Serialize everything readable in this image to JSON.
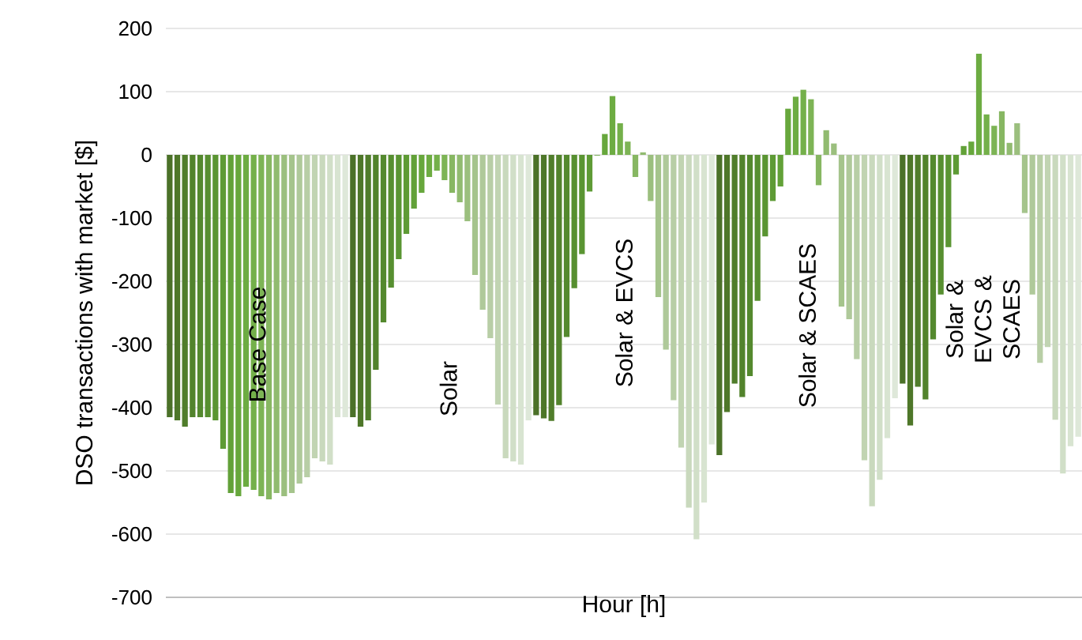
{
  "chart_data": {
    "type": "bar",
    "xlabel": "Hour [h]",
    "ylabel": "DSO transactions with market [$]",
    "categories": [
      null,
      null,
      null,
      null,
      null,
      null,
      null,
      null,
      null,
      null,
      null,
      null,
      null,
      null,
      null,
      null,
      null,
      null,
      null,
      null,
      null,
      null,
      null,
      null,
      null,
      null,
      null,
      null,
      null,
      null,
      null,
      null,
      null,
      null,
      null,
      null,
      null,
      null,
      null,
      null,
      null,
      null,
      null,
      null,
      null,
      null,
      null,
      null,
      null,
      null,
      null,
      null,
      null,
      null,
      null,
      null,
      null,
      null,
      null,
      null,
      null,
      null,
      null,
      null,
      null,
      null,
      null,
      null,
      null,
      null,
      null,
      null,
      null,
      null,
      null,
      null,
      null,
      null,
      null,
      null,
      null,
      null,
      null,
      null,
      null,
      null,
      null,
      null,
      null,
      null,
      null,
      null,
      null,
      null,
      null,
      null,
      null,
      null,
      null,
      null,
      null,
      null,
      null,
      null,
      null,
      null,
      null,
      null,
      null,
      null,
      null,
      null,
      null,
      null,
      null,
      null,
      null,
      null,
      null,
      null
    ],
    "values": [
      -415,
      -420,
      -430,
      -415,
      -415,
      -415,
      -420,
      -465,
      -535,
      -540,
      -525,
      -530,
      -540,
      -545,
      -535,
      -540,
      -535,
      -520,
      -510,
      -480,
      -485,
      -490,
      -415,
      -415,
      -415,
      -430,
      -420,
      -340,
      -265,
      -210,
      -165,
      -125,
      -85,
      -60,
      -35,
      -25,
      -40,
      -60,
      -75,
      -105,
      -190,
      -245,
      -290,
      -395,
      -480,
      -485,
      -490,
      -420,
      -412,
      -417,
      -421,
      -396,
      -288,
      -211,
      -157,
      -58,
      -1,
      33,
      93,
      50,
      21,
      -35,
      4,
      -73,
      -225,
      -308,
      -388,
      -463,
      -558,
      -608,
      -550,
      -458,
      -475,
      -407,
      -362,
      -383,
      -350,
      -231,
      -129,
      -73,
      -50,
      73,
      92,
      103,
      88,
      -48,
      39,
      18,
      -240,
      -260,
      -323,
      -483,
      -556,
      -514,
      -448,
      -385,
      -362,
      -428,
      -367,
      -387,
      -292,
      -221,
      -146,
      -31,
      14,
      21,
      160,
      64,
      46,
      69,
      19,
      50,
      -92,
      -221,
      -329,
      -304,
      -419,
      -504,
      -461,
      -446
    ],
    "colors": [
      "#4b7128",
      "#4e7729",
      "#507d2b",
      "#52832c",
      "#54892e",
      "#578f30",
      "#5a9532",
      "#5e9b35",
      "#62a138",
      "#67a73c",
      "#6dac42",
      "#74b04a",
      "#7db455",
      "#87b762",
      "#91bb70",
      "#9bbf7e",
      "#a5c48c",
      "#afc99a",
      "#b8cea6",
      "#c1d4b2",
      "#c9d9bd",
      "#d1dfc8",
      "#d8e4d1",
      "#dee8d9",
      "#4b7128",
      "#4e7729",
      "#507d2b",
      "#52832c",
      "#54892e",
      "#578f30",
      "#5a9532",
      "#5e9b35",
      "#62a138",
      "#67a73c",
      "#6dac42",
      "#74b04a",
      "#7db455",
      "#87b762",
      "#91bb70",
      "#9bbf7e",
      "#a5c48c",
      "#afc99a",
      "#b8cea6",
      "#c1d4b2",
      "#c9d9bd",
      "#d1dfc8",
      "#d8e4d1",
      "#dee8d9",
      "#4b7128",
      "#4e7729",
      "#507d2b",
      "#52832c",
      "#54892e",
      "#578f30",
      "#5a9532",
      "#5e9b35",
      "#62a138",
      "#67a73c",
      "#6dac42",
      "#74b04a",
      "#7db455",
      "#87b762",
      "#91bb70",
      "#9bbf7e",
      "#a5c48c",
      "#afc99a",
      "#b8cea6",
      "#c1d4b2",
      "#c9d9bd",
      "#d1dfc8",
      "#d8e4d1",
      "#dee8d9",
      "#4b7128",
      "#4e7729",
      "#507d2b",
      "#52832c",
      "#54892e",
      "#578f30",
      "#5a9532",
      "#5e9b35",
      "#62a138",
      "#67a73c",
      "#6dac42",
      "#74b04a",
      "#7db455",
      "#87b762",
      "#91bb70",
      "#9bbf7e",
      "#a5c48c",
      "#afc99a",
      "#b8cea6",
      "#c1d4b2",
      "#c9d9bd",
      "#d1dfc8",
      "#d8e4d1",
      "#dee8d9",
      "#4b7128",
      "#4e7729",
      "#507d2b",
      "#52832c",
      "#54892e",
      "#578f30",
      "#5a9532",
      "#5e9b35",
      "#62a138",
      "#67a73c",
      "#6dac42",
      "#74b04a",
      "#7db455",
      "#87b762",
      "#91bb70",
      "#9bbf7e",
      "#a5c48c",
      "#afc99a",
      "#b8cea6",
      "#c1d4b2",
      "#c9d9bd",
      "#d1dfc8",
      "#d8e4d1",
      "#dee8d9"
    ],
    "ylim": [
      -700,
      200
    ],
    "yticks": [
      -700,
      -600,
      -500,
      -400,
      -300,
      -200,
      -100,
      0,
      100,
      200
    ],
    "grid": "y",
    "tick_labels": "y",
    "annotations": [
      "Base Case",
      "Solar",
      "Solar & EVCS",
      "Solar & SCAES",
      "Solar & EVCS & SCAES"
    ]
  }
}
